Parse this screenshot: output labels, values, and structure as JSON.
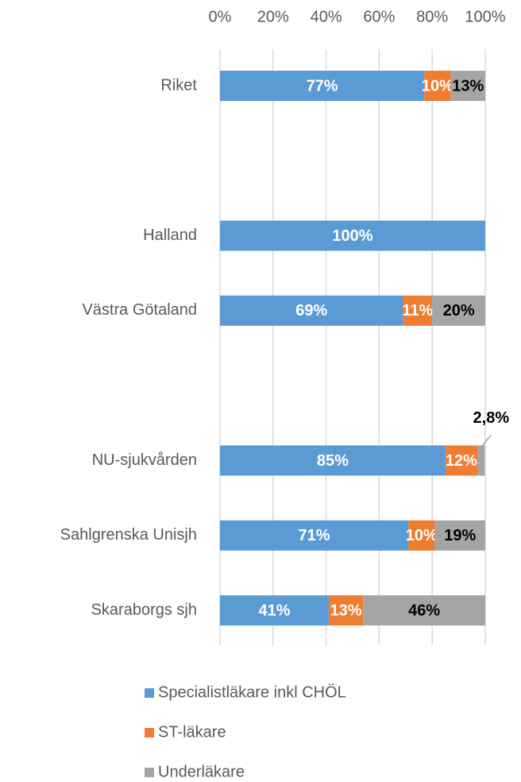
{
  "chart_data": {
    "type": "stacked-bar-horizontal",
    "categories": [
      "Riket",
      null,
      "Halland",
      "Västra Götaland",
      null,
      "NU-sjukvården",
      "Sahlgrenska Unisjh",
      "Skaraborgs sjh"
    ],
    "series": [
      {
        "name": "Specialistläkare inkl CHÖL",
        "color": "#5b9bd5",
        "label_color": "#ffffff",
        "values": [
          77,
          null,
          100,
          69,
          null,
          85,
          71,
          41
        ],
        "value_labels": [
          "77%",
          null,
          "100%",
          "69%",
          null,
          "85%",
          "71%",
          "41%"
        ]
      },
      {
        "name": "ST-läkare",
        "color": "#ed7d31",
        "label_color": "#ffffff",
        "values": [
          10,
          null,
          null,
          11,
          null,
          12,
          10,
          13
        ],
        "value_labels": [
          "10%",
          null,
          null,
          "11%",
          null,
          "12%",
          "10%",
          "13%"
        ]
      },
      {
        "name": "Underläkare",
        "color": "#a5a5a5",
        "label_color": "#000000",
        "values": [
          13,
          null,
          null,
          20,
          null,
          2.8,
          19,
          46
        ],
        "value_labels": [
          "13%",
          null,
          null,
          "20%",
          null,
          "2,8%",
          "19%",
          "46%"
        ]
      }
    ],
    "xlim": [
      0,
      100
    ],
    "xticks": [
      {
        "value": 0,
        "label": "0%"
      },
      {
        "value": 20,
        "label": "20%"
      },
      {
        "value": 40,
        "label": "40%"
      },
      {
        "value": 60,
        "label": "60%"
      },
      {
        "value": 80,
        "label": "80%"
      },
      {
        "value": 100,
        "label": "100%"
      }
    ],
    "grid": true,
    "legend": "bottom"
  }
}
